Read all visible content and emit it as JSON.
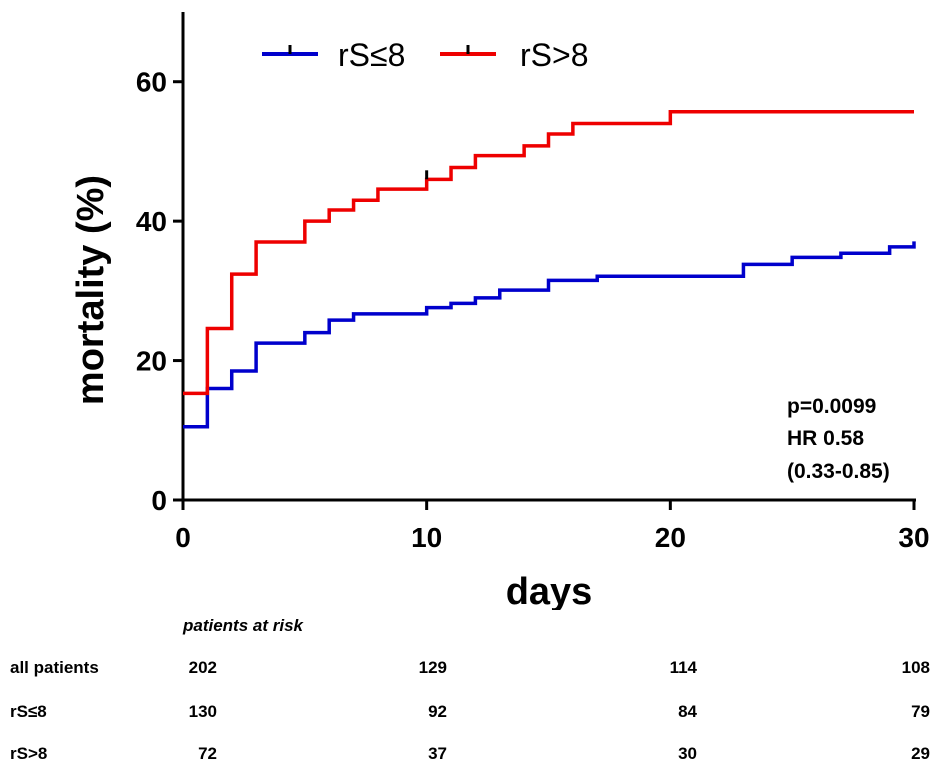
{
  "chart_data": {
    "type": "line",
    "subtype": "kaplan-meier-step",
    "xlabel": "days",
    "ylabel": "mortality (%)",
    "xlim": [
      0,
      30
    ],
    "ylim": [
      0,
      70
    ],
    "xticks": [
      "0",
      "10",
      "20",
      "30"
    ],
    "yticks": [
      "0",
      "20",
      "40",
      "60"
    ],
    "legend": {
      "position": "top",
      "entries": [
        "rS≤8",
        "rS>8"
      ]
    },
    "series": [
      {
        "name": "rS≤8",
        "color": "#0000cc",
        "x": [
          0,
          1,
          2,
          3,
          5,
          6,
          7,
          10,
          11,
          12,
          13,
          15,
          17,
          23,
          25,
          27,
          29,
          30
        ],
        "y": [
          10.5,
          16,
          18.5,
          22.5,
          24,
          25.8,
          26.7,
          27.6,
          28.2,
          29,
          30.1,
          31.5,
          32.1,
          33.8,
          34.8,
          35.4,
          36.3,
          37.1
        ],
        "censor_marks": []
      },
      {
        "name": "rS>8",
        "color": "#ee0000",
        "x": [
          0,
          1,
          2,
          3,
          5,
          6,
          7,
          8,
          10,
          11,
          12,
          14,
          15,
          16,
          20,
          30
        ],
        "y": [
          15.3,
          24.6,
          32.4,
          37,
          40,
          41.6,
          43,
          44.6,
          46,
          47.7,
          49.4,
          50.8,
          52.5,
          54,
          55.7,
          55.7
        ],
        "censor_marks": [
          {
            "x": 10,
            "y": 46
          }
        ]
      }
    ],
    "annotations": [
      "p=0.0099",
      "HR 0.58",
      "(0.33-0.85)"
    ]
  },
  "risk_table": {
    "title": "patients  at risk",
    "rows": [
      {
        "label": "all patients",
        "values": [
          "202",
          "129",
          "114",
          "108"
        ]
      },
      {
        "label": "rS≤8",
        "values": [
          "130",
          "92",
          "84",
          "79"
        ]
      },
      {
        "label": "rS>8",
        "values": [
          "72",
          "37",
          "30",
          "29"
        ]
      }
    ]
  }
}
